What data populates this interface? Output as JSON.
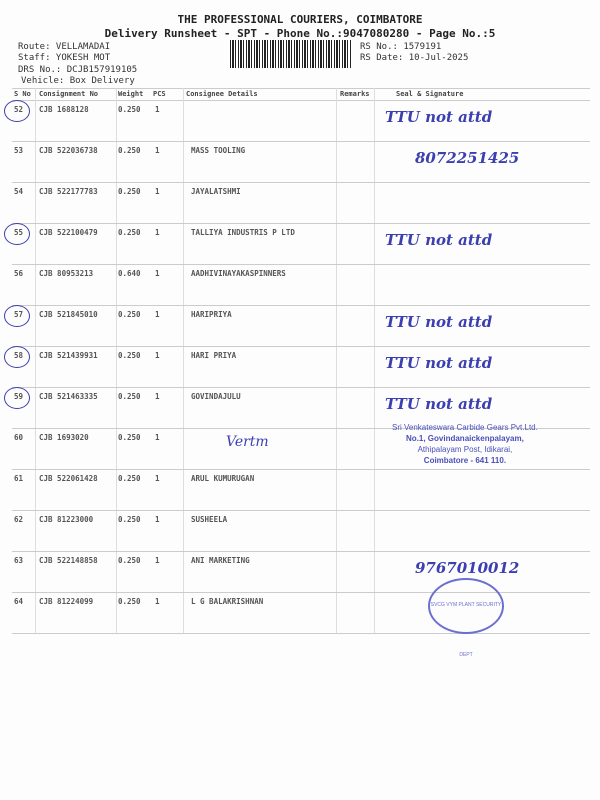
{
  "header": {
    "company": "THE PROFESSIONAL COURIERS, COIMBATORE",
    "subtitle": "Delivery Runsheet - SPT - Phone No.:9047080280 - Page No.:5",
    "route": "Route: VELLAMADAI",
    "staff": "Staff: YOKESH MOT",
    "drs": "DRS No.: DCJB157919105",
    "vehicle": "Vehicle: Box Delivery",
    "rs_no": "RS No.: 1579191",
    "rs_date": "RS Date: 10-Jul-2025"
  },
  "columns": [
    "S No",
    "Consignment No",
    "Weight",
    "PCS",
    "Consignee Details",
    "Remarks",
    "Seal & Signature"
  ],
  "rows": [
    {
      "sno": "52",
      "cn": "CJB 1688128",
      "wt": "0.250",
      "pcs": "1",
      "consignee": "",
      "circled": true,
      "note": "TTU  not attd"
    },
    {
      "sno": "53",
      "cn": "CJB 522036738",
      "wt": "0.250",
      "pcs": "1",
      "consignee": "MASS TOOLING",
      "circled": false,
      "note": "8072251425"
    },
    {
      "sno": "54",
      "cn": "CJB 522177783",
      "wt": "0.250",
      "pcs": "1",
      "consignee": "JAYALATSHMI",
      "circled": false,
      "note": ""
    },
    {
      "sno": "55",
      "cn": "CJB 522100479",
      "wt": "0.250",
      "pcs": "1",
      "consignee": "TALLIYA INDUSTRIS P LTD",
      "circled": true,
      "note": "TTU  not attd"
    },
    {
      "sno": "56",
      "cn": "CJB 80953213",
      "wt": "0.640",
      "pcs": "1",
      "consignee": "AADHIVINAYAKASPINNERS",
      "circled": false,
      "note": ""
    },
    {
      "sno": "57",
      "cn": "CJB 521845010",
      "wt": "0.250",
      "pcs": "1",
      "consignee": "HARIPRIYA",
      "circled": true,
      "note": "TTU  not attd"
    },
    {
      "sno": "58",
      "cn": "CJB 521439931",
      "wt": "0.250",
      "pcs": "1",
      "consignee": "HARI PRIYA",
      "circled": true,
      "note": "TTU  not attd"
    },
    {
      "sno": "59",
      "cn": "CJB 521463335",
      "wt": "0.250",
      "pcs": "1",
      "consignee": "GOVINDAJULU",
      "circled": true,
      "note": "TTU  not attd"
    },
    {
      "sno": "60",
      "cn": "CJB 1693020",
      "wt": "0.250",
      "pcs": "1",
      "consignee": "",
      "circled": false,
      "note": ""
    },
    {
      "sno": "61",
      "cn": "CJB 522061428",
      "wt": "0.250",
      "pcs": "1",
      "consignee": "ARUL KUMURUGAN",
      "circled": false,
      "note": ""
    },
    {
      "sno": "62",
      "cn": "CJB 81223000",
      "wt": "0.250",
      "pcs": "1",
      "consignee": "SUSHEELA",
      "circled": false,
      "note": ""
    },
    {
      "sno": "63",
      "cn": "CJB 522148858",
      "wt": "0.250",
      "pcs": "1",
      "consignee": "ANI MARKETING",
      "circled": false,
      "note": "9767010012"
    },
    {
      "sno": "64",
      "cn": "CJB 81224099",
      "wt": "0.250",
      "pcs": "1",
      "consignee": "L G BALAKRISHNAN",
      "circled": false,
      "note": ""
    }
  ],
  "stamp": {
    "line1": "Sri Venkateswara Carbide Gears Pvt.Ltd.",
    "line2": "No.1, Govindanaickenpalayam,",
    "line3": "Athipalayam Post, Idikarai,",
    "line4": "Coimbatore - 641 110."
  },
  "seal_text": "SVCG VYM PLANT SECURITY DEPT",
  "ink_color": "#3b3fb0"
}
